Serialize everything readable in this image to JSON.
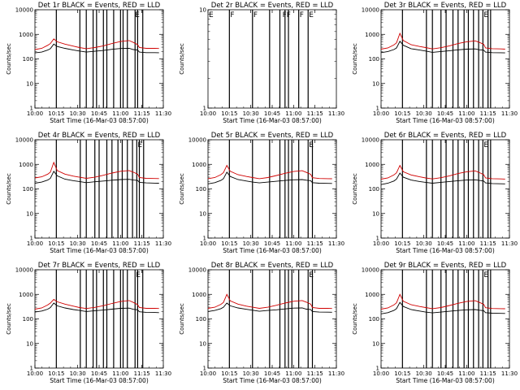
{
  "colors": {
    "events": "#000000",
    "lld": "#d00000",
    "background": "#ffffff"
  },
  "chart_data": [
    {
      "type": "line",
      "title": "Det 1r BLACK = Events, RED = LLD",
      "xlabel": "Start Time (16-Mar-03 08:57:00)",
      "ylabel": "Counts/sec",
      "x_ticks": [
        "10:00",
        "10:15",
        "10:30",
        "10:45",
        "11:00",
        "11:15",
        "11:30"
      ],
      "y_ticks": [
        "1",
        "10",
        "100",
        "1000",
        "10000"
      ],
      "ylim": [
        1,
        10000
      ],
      "yscale": "log",
      "vlines": [
        10.25,
        10.525,
        10.6,
        10.68,
        10.72,
        10.8,
        10.84,
        10.92,
        11.0,
        11.03,
        11.08,
        11.17,
        11.2,
        11.26
      ],
      "markers": [
        {
          "label": "E",
          "x": 11.17
        }
      ],
      "x": [
        10.0,
        10.08,
        10.15,
        10.18,
        10.22,
        10.26,
        10.35,
        10.45,
        10.52,
        10.6,
        10.7,
        10.8,
        10.9,
        11.0,
        11.1,
        11.15,
        11.2,
        11.22,
        11.3,
        11.4,
        11.45
      ],
      "series": [
        {
          "name": "Events",
          "values": [
            175,
            190,
            230,
            260,
            400,
            320,
            270,
            230,
            210,
            190,
            205,
            220,
            245,
            265,
            270,
            240,
            230,
            190,
            180,
            180,
            178
          ]
        },
        {
          "name": "LLD",
          "values": [
            240,
            270,
            360,
            420,
            650,
            500,
            400,
            330,
            290,
            260,
            290,
            340,
            420,
            510,
            560,
            470,
            380,
            290,
            270,
            270,
            265
          ]
        }
      ]
    },
    {
      "type": "line",
      "title": "Det 2r BLACK = Events, RED = LLD",
      "xlabel": "Start Time (16-Mar-03 08:57:00)",
      "ylabel": "Counts/sec",
      "x_ticks": [
        "10:00",
        "10:15",
        "10:30",
        "10:45",
        "11:00",
        "11:15",
        "11:30"
      ],
      "y_ticks": [
        "1",
        "10"
      ],
      "ylim": [
        1,
        10
      ],
      "yscale": "log",
      "vlines": [
        10.25,
        10.52,
        10.72,
        10.84,
        10.9,
        10.94,
        11.06,
        11.17
      ],
      "markers": [
        {
          "label": "E",
          "x": 10.01
        },
        {
          "label": "F",
          "x": 10.26
        },
        {
          "label": "F",
          "x": 10.53
        },
        {
          "label": "FF",
          "x": 10.87
        },
        {
          "label": "F",
          "x": 11.07
        },
        {
          "label": "E",
          "x": 11.18
        }
      ],
      "x": [],
      "series": []
    },
    {
      "type": "line",
      "title": "Det 3r BLACK = Events, RED = LLD",
      "xlabel": "Start Time (16-Mar-03 08:57:00)",
      "ylabel": "Counts/sec",
      "x_ticks": [
        "10:00",
        "10:15",
        "10:30",
        "10:45",
        "11:00",
        "11:15",
        "11:30"
      ],
      "y_ticks": [
        "1",
        "10",
        "100",
        "1000",
        "10000"
      ],
      "ylim": [
        1,
        10000
      ],
      "yscale": "log",
      "vlines": [
        10.25,
        10.53,
        10.6,
        10.7,
        10.76,
        10.84,
        10.9,
        10.97,
        11.02,
        11.08,
        11.14,
        11.19,
        11.25,
        11.28
      ],
      "markers": [
        {
          "label": "E",
          "x": 11.2
        }
      ],
      "x": [
        10.0,
        10.08,
        10.15,
        10.18,
        10.22,
        10.26,
        10.35,
        10.45,
        10.52,
        10.6,
        10.7,
        10.8,
        10.9,
        11.0,
        11.1,
        11.15,
        11.2,
        11.22,
        11.3,
        11.4,
        11.45
      ],
      "series": [
        {
          "name": "Events",
          "values": [
            180,
            200,
            240,
            280,
            520,
            360,
            260,
            230,
            210,
            185,
            200,
            215,
            235,
            250,
            255,
            235,
            225,
            190,
            180,
            178,
            176
          ]
        },
        {
          "name": "LLD",
          "values": [
            250,
            280,
            370,
            450,
            1100,
            560,
            380,
            320,
            290,
            255,
            285,
            340,
            420,
            500,
            540,
            470,
            390,
            280,
            260,
            255,
            250
          ]
        }
      ]
    },
    {
      "type": "line",
      "title": "Det 4r BLACK = Events, RED = LLD",
      "xlabel": "Start Time (16-Mar-03 08:57:00)",
      "ylabel": "Counts/sec",
      "x_ticks": [
        "10:00",
        "10:15",
        "10:30",
        "10:45",
        "11:00",
        "11:15",
        "11:30"
      ],
      "y_ticks": [
        "1",
        "10",
        "100",
        "1000",
        "10000"
      ],
      "ylim": [
        1,
        10000
      ],
      "yscale": "log",
      "vlines": [
        10.25,
        10.53,
        10.6,
        10.7,
        10.75,
        10.84,
        10.9,
        10.97,
        11.02,
        11.08,
        11.14,
        11.19,
        11.22,
        11.27
      ],
      "markers": [
        {
          "label": "E",
          "x": 11.2
        }
      ],
      "x": [
        10.0,
        10.08,
        10.15,
        10.18,
        10.22,
        10.26,
        10.35,
        10.45,
        10.52,
        10.6,
        10.7,
        10.8,
        10.9,
        11.0,
        11.1,
        11.15,
        11.2,
        11.22,
        11.3,
        11.4,
        11.45
      ],
      "series": [
        {
          "name": "Events",
          "values": [
            170,
            190,
            230,
            270,
            520,
            340,
            250,
            215,
            200,
            180,
            195,
            210,
            225,
            240,
            245,
            230,
            220,
            185,
            175,
            172,
            170
          ]
        },
        {
          "name": "LLD",
          "values": [
            280,
            310,
            400,
            480,
            1200,
            560,
            400,
            330,
            300,
            270,
            300,
            360,
            440,
            520,
            560,
            480,
            400,
            290,
            270,
            265,
            262
          ]
        }
      ]
    },
    {
      "type": "line",
      "title": "Det 5r BLACK = Events, RED = LLD",
      "xlabel": "Start Time (16-Mar-03 08:57:00)",
      "ylabel": "Counts/sec",
      "x_ticks": [
        "10:00",
        "10:15",
        "10:30",
        "10:45",
        "11:00",
        "11:15",
        "11:30"
      ],
      "y_ticks": [
        "1",
        "10",
        "100",
        "1000",
        "10000"
      ],
      "ylim": [
        1,
        10000
      ],
      "yscale": "log",
      "vlines": [
        10.25,
        10.52,
        10.72,
        10.84,
        10.9,
        10.94,
        10.98,
        11.06,
        11.17,
        11.22
      ],
      "markers": [
        {
          "label": "E",
          "x": 11.18
        }
      ],
      "x": [
        10.0,
        10.08,
        10.15,
        10.18,
        10.22,
        10.26,
        10.35,
        10.45,
        10.52,
        10.6,
        10.7,
        10.8,
        10.9,
        11.0,
        11.1,
        11.15,
        11.2,
        11.22,
        11.3,
        11.4,
        11.45
      ],
      "series": [
        {
          "name": "Events",
          "values": [
            160,
            180,
            220,
            260,
            480,
            320,
            240,
            210,
            190,
            175,
            190,
            205,
            220,
            235,
            240,
            225,
            215,
            180,
            170,
            168,
            166
          ]
        },
        {
          "name": "LLD",
          "values": [
            260,
            290,
            380,
            460,
            900,
            520,
            380,
            320,
            290,
            260,
            290,
            350,
            430,
            510,
            550,
            470,
            390,
            285,
            265,
            260,
            258
          ]
        }
      ]
    },
    {
      "type": "line",
      "title": "Det 6r BLACK = Events, RED = LLD",
      "xlabel": "Start Time (16-Mar-03 08:57:00)",
      "ylabel": "Counts/sec",
      "x_ticks": [
        "10:00",
        "10:15",
        "10:30",
        "10:45",
        "11:00",
        "11:15",
        "11:30"
      ],
      "y_ticks": [
        "1",
        "10",
        "100",
        "1000",
        "10000"
      ],
      "ylim": [
        1,
        10000
      ],
      "yscale": "log",
      "vlines": [
        10.25,
        10.53,
        10.6,
        10.7,
        10.76,
        10.84,
        10.9,
        10.97,
        11.02,
        11.08,
        11.14,
        11.19,
        11.25,
        11.28
      ],
      "markers": [
        {
          "label": "E",
          "x": 11.2
        }
      ],
      "x": [
        10.0,
        10.08,
        10.15,
        10.18,
        10.22,
        10.26,
        10.35,
        10.45,
        10.52,
        10.6,
        10.7,
        10.8,
        10.9,
        11.0,
        11.1,
        11.15,
        11.2,
        11.22,
        11.3,
        11.4,
        11.45
      ],
      "series": [
        {
          "name": "Events",
          "values": [
            150,
            170,
            210,
            250,
            440,
            300,
            230,
            200,
            185,
            170,
            185,
            200,
            215,
            230,
            235,
            220,
            210,
            175,
            165,
            162,
            160
          ]
        },
        {
          "name": "LLD",
          "values": [
            250,
            280,
            370,
            450,
            900,
            500,
            370,
            310,
            280,
            255,
            285,
            340,
            420,
            500,
            540,
            460,
            380,
            280,
            260,
            255,
            252
          ]
        }
      ]
    },
    {
      "type": "line",
      "title": "Det 7r BLACK = Events, RED = LLD",
      "xlabel": "Start Time (16-Mar-03 08:57:00)",
      "ylabel": "Counts/sec",
      "x_ticks": [
        "10:00",
        "10:15",
        "10:30",
        "10:45",
        "11:00",
        "11:15",
        "11:30"
      ],
      "y_ticks": [
        "1",
        "10",
        "100",
        "1000",
        "10000"
      ],
      "ylim": [
        1,
        10000
      ],
      "yscale": "log",
      "vlines": [
        10.25,
        10.53,
        10.6,
        10.68,
        10.72,
        10.8,
        10.84,
        10.92,
        11.0,
        11.03,
        11.08,
        11.17,
        11.2,
        11.26
      ],
      "markers": [
        {
          "label": "E",
          "x": 11.18
        }
      ],
      "x": [
        10.0,
        10.08,
        10.15,
        10.18,
        10.22,
        10.26,
        10.35,
        10.45,
        10.52,
        10.6,
        10.7,
        10.8,
        10.9,
        11.0,
        11.1,
        11.15,
        11.2,
        11.22,
        11.3,
        11.4,
        11.45
      ],
      "series": [
        {
          "name": "Events",
          "values": [
            190,
            210,
            250,
            290,
            440,
            340,
            280,
            240,
            220,
            200,
            215,
            230,
            250,
            270,
            275,
            245,
            235,
            195,
            185,
            182,
            180
          ]
        },
        {
          "name": "LLD",
          "values": [
            250,
            280,
            370,
            440,
            620,
            500,
            400,
            330,
            290,
            265,
            295,
            345,
            425,
            510,
            560,
            470,
            380,
            290,
            270,
            268,
            265
          ]
        }
      ]
    },
    {
      "type": "line",
      "title": "Det 8r BLACK = Events, RED = LLD",
      "xlabel": "Start Time (16-Mar-03 08:57:00)",
      "ylabel": "Counts/sec",
      "x_ticks": [
        "10:00",
        "10:15",
        "10:30",
        "10:45",
        "11:00",
        "11:15",
        "11:30"
      ],
      "y_ticks": [
        "1",
        "10",
        "100",
        "1000",
        "10000"
      ],
      "ylim": [
        1,
        10000
      ],
      "yscale": "log",
      "vlines": [
        10.25,
        10.52,
        10.72,
        10.84,
        10.9,
        10.94,
        10.98,
        11.06,
        11.17,
        11.22
      ],
      "markers": [
        {
          "label": "E",
          "x": 11.18
        }
      ],
      "x": [
        10.0,
        10.08,
        10.15,
        10.18,
        10.22,
        10.26,
        10.35,
        10.45,
        10.52,
        10.6,
        10.7,
        10.8,
        10.9,
        11.0,
        11.1,
        11.15,
        11.2,
        11.22,
        11.3,
        11.4,
        11.45
      ],
      "series": [
        {
          "name": "Events",
          "values": [
            200,
            220,
            260,
            300,
            440,
            340,
            280,
            245,
            225,
            205,
            220,
            235,
            255,
            275,
            280,
            250,
            240,
            200,
            190,
            188,
            186
          ]
        },
        {
          "name": "LLD",
          "values": [
            270,
            300,
            390,
            470,
            1000,
            540,
            400,
            330,
            300,
            270,
            300,
            360,
            440,
            520,
            560,
            480,
            400,
            290,
            270,
            268,
            265
          ]
        }
      ]
    },
    {
      "type": "line",
      "title": "Det 9r BLACK = Events, RED = LLD",
      "xlabel": "Start Time (16-Mar-03 08:57:00)",
      "ylabel": "Counts/sec",
      "x_ticks": [
        "10:00",
        "10:15",
        "10:30",
        "10:45",
        "11:00",
        "11:15",
        "11:30"
      ],
      "y_ticks": [
        "1",
        "10",
        "100",
        "1000",
        "10000"
      ],
      "ylim": [
        1,
        10000
      ],
      "yscale": "log",
      "vlines": [
        10.25,
        10.53,
        10.6,
        10.7,
        10.76,
        10.84,
        10.9,
        10.97,
        11.02,
        11.08,
        11.14,
        11.19,
        11.25,
        11.28
      ],
      "markers": [
        {
          "label": "E",
          "x": 11.2
        }
      ],
      "x": [
        10.0,
        10.08,
        10.15,
        10.18,
        10.22,
        10.26,
        10.35,
        10.45,
        10.52,
        10.6,
        10.7,
        10.8,
        10.9,
        11.0,
        11.1,
        11.15,
        11.2,
        11.22,
        11.3,
        11.4,
        11.45
      ],
      "series": [
        {
          "name": "Events",
          "values": [
            160,
            180,
            220,
            260,
            470,
            320,
            240,
            210,
            190,
            175,
            190,
            205,
            220,
            235,
            240,
            225,
            215,
            180,
            170,
            168,
            166
          ]
        },
        {
          "name": "LLD",
          "values": [
            250,
            280,
            370,
            450,
            1000,
            520,
            380,
            320,
            290,
            260,
            290,
            350,
            430,
            510,
            550,
            470,
            390,
            285,
            265,
            260,
            258
          ]
        }
      ]
    }
  ]
}
